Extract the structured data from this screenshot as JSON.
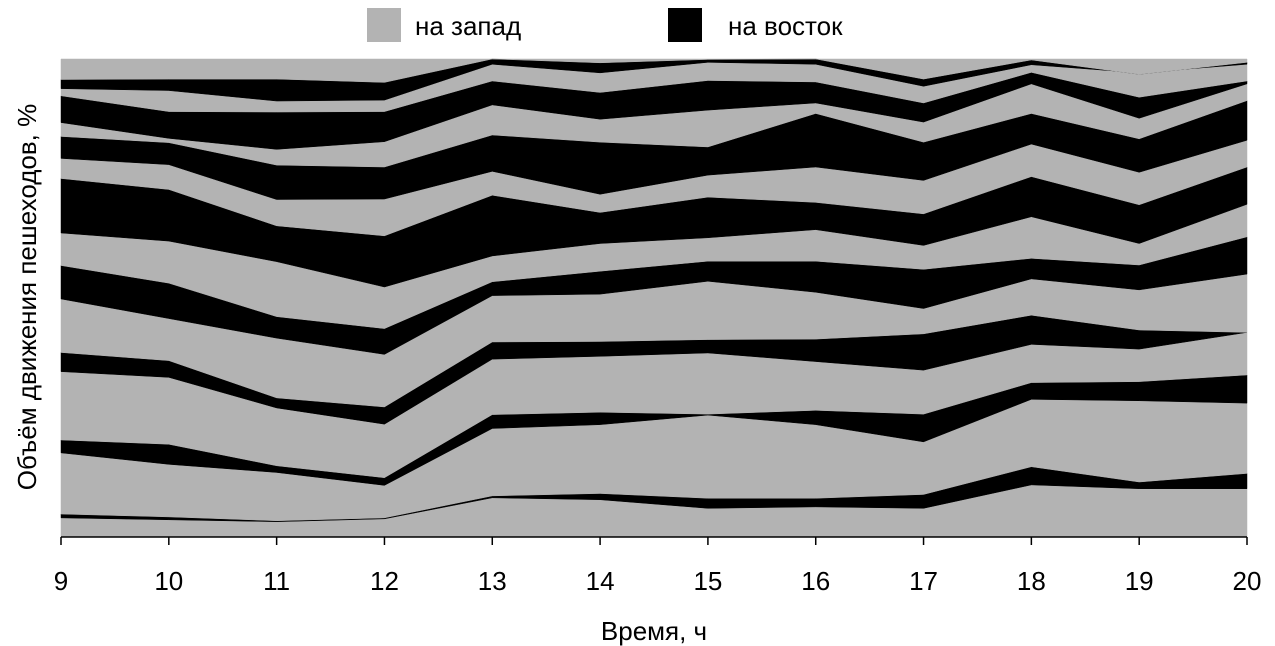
{
  "chart_data": {
    "type": "area",
    "stacked": true,
    "normalized_percent": true,
    "xlabel": "Время, ч",
    "ylabel": "Объём движения пешеходов, %",
    "x": [
      9,
      10,
      11,
      12,
      13,
      14,
      15,
      16,
      17,
      18,
      19,
      20
    ],
    "ylim": [
      0,
      100
    ],
    "grid": false,
    "legend": {
      "placement": "top",
      "entries": [
        {
          "label": "на запад",
          "color": "#b3b3b3"
        },
        {
          "label": "на восток",
          "color": "#000000"
        }
      ]
    },
    "colors": {
      "west": "#b3b3b3",
      "east": "#000000"
    },
    "boundaries": [
      [
        4.0,
        3.6,
        3.2,
        3.8,
        8.2,
        7.8,
        6.0,
        6.3,
        6.0,
        10.9,
        10.1,
        10.1
      ],
      [
        4.8,
        4.2,
        3.4,
        4.0,
        8.6,
        9.1,
        8.1,
        8.1,
        8.9,
        14.7,
        11.5,
        13.3
      ],
      [
        17.6,
        15.2,
        13.5,
        10.8,
        22.7,
        23.5,
        25.5,
        23.5,
        19.9,
        28.8,
        28.5,
        28.0
      ],
      [
        20.3,
        19.4,
        14.9,
        12.4,
        25.6,
        26.1,
        25.7,
        26.5,
        25.7,
        32.3,
        32.5,
        33.9
      ],
      [
        34.6,
        33.4,
        27.0,
        23.6,
        37.2,
        37.8,
        38.5,
        36.7,
        34.9,
        40.3,
        39.3,
        42.8
      ],
      [
        38.6,
        36.9,
        29.1,
        27.2,
        40.8,
        40.9,
        41.3,
        41.4,
        42.5,
        46.4,
        43.3,
        42.8
      ],
      [
        49.8,
        45.7,
        41.6,
        38.2,
        50.5,
        50.8,
        53.5,
        51.2,
        47.8,
        54.0,
        51.7,
        55.0
      ],
      [
        56.8,
        53.1,
        46.1,
        43.6,
        53.4,
        55.6,
        57.7,
        57.7,
        56.0,
        58.3,
        56.9,
        62.8
      ],
      [
        63.6,
        61.9,
        57.6,
        52.3,
        58.8,
        61.4,
        62.6,
        64.3,
        61.0,
        67.0,
        61.4,
        69.6
      ],
      [
        75.0,
        72.7,
        65.1,
        63.0,
        71.5,
        67.9,
        71.1,
        70.0,
        67.6,
        75.4,
        69.5,
        77.4
      ],
      [
        79.2,
        77.9,
        70.6,
        70.7,
        76.5,
        71.7,
        75.7,
        77.4,
        74.6,
        82.2,
        76.3,
        83.0
      ],
      [
        83.8,
        82.5,
        77.8,
        77.4,
        84.1,
        82.6,
        81.6,
        88.6,
        82.6,
        88.6,
        83.3,
        91.3
      ],
      [
        86.7,
        83.4,
        81.1,
        82.7,
        90.4,
        87.4,
        89.3,
        90.8,
        86.8,
        94.8,
        87.6,
        94.8
      ],
      [
        92.3,
        89.0,
        88.9,
        89.0,
        95.4,
        93.0,
        95.5,
        95.2,
        90.8,
        97.2,
        92.0,
        95.4
      ],
      [
        93.8,
        93.4,
        91.2,
        91.4,
        98.9,
        97.1,
        99.3,
        98.9,
        94.3,
        98.8,
        97.1,
        98.9
      ],
      [
        95.7,
        95.8,
        95.8,
        95.1,
        100.0,
        99.2,
        99.9,
        100.0,
        95.8,
        99.8,
        96.8,
        99.3
      ],
      [
        100,
        100,
        100,
        100,
        100,
        100,
        100,
        100,
        100,
        100,
        100,
        100
      ]
    ]
  }
}
